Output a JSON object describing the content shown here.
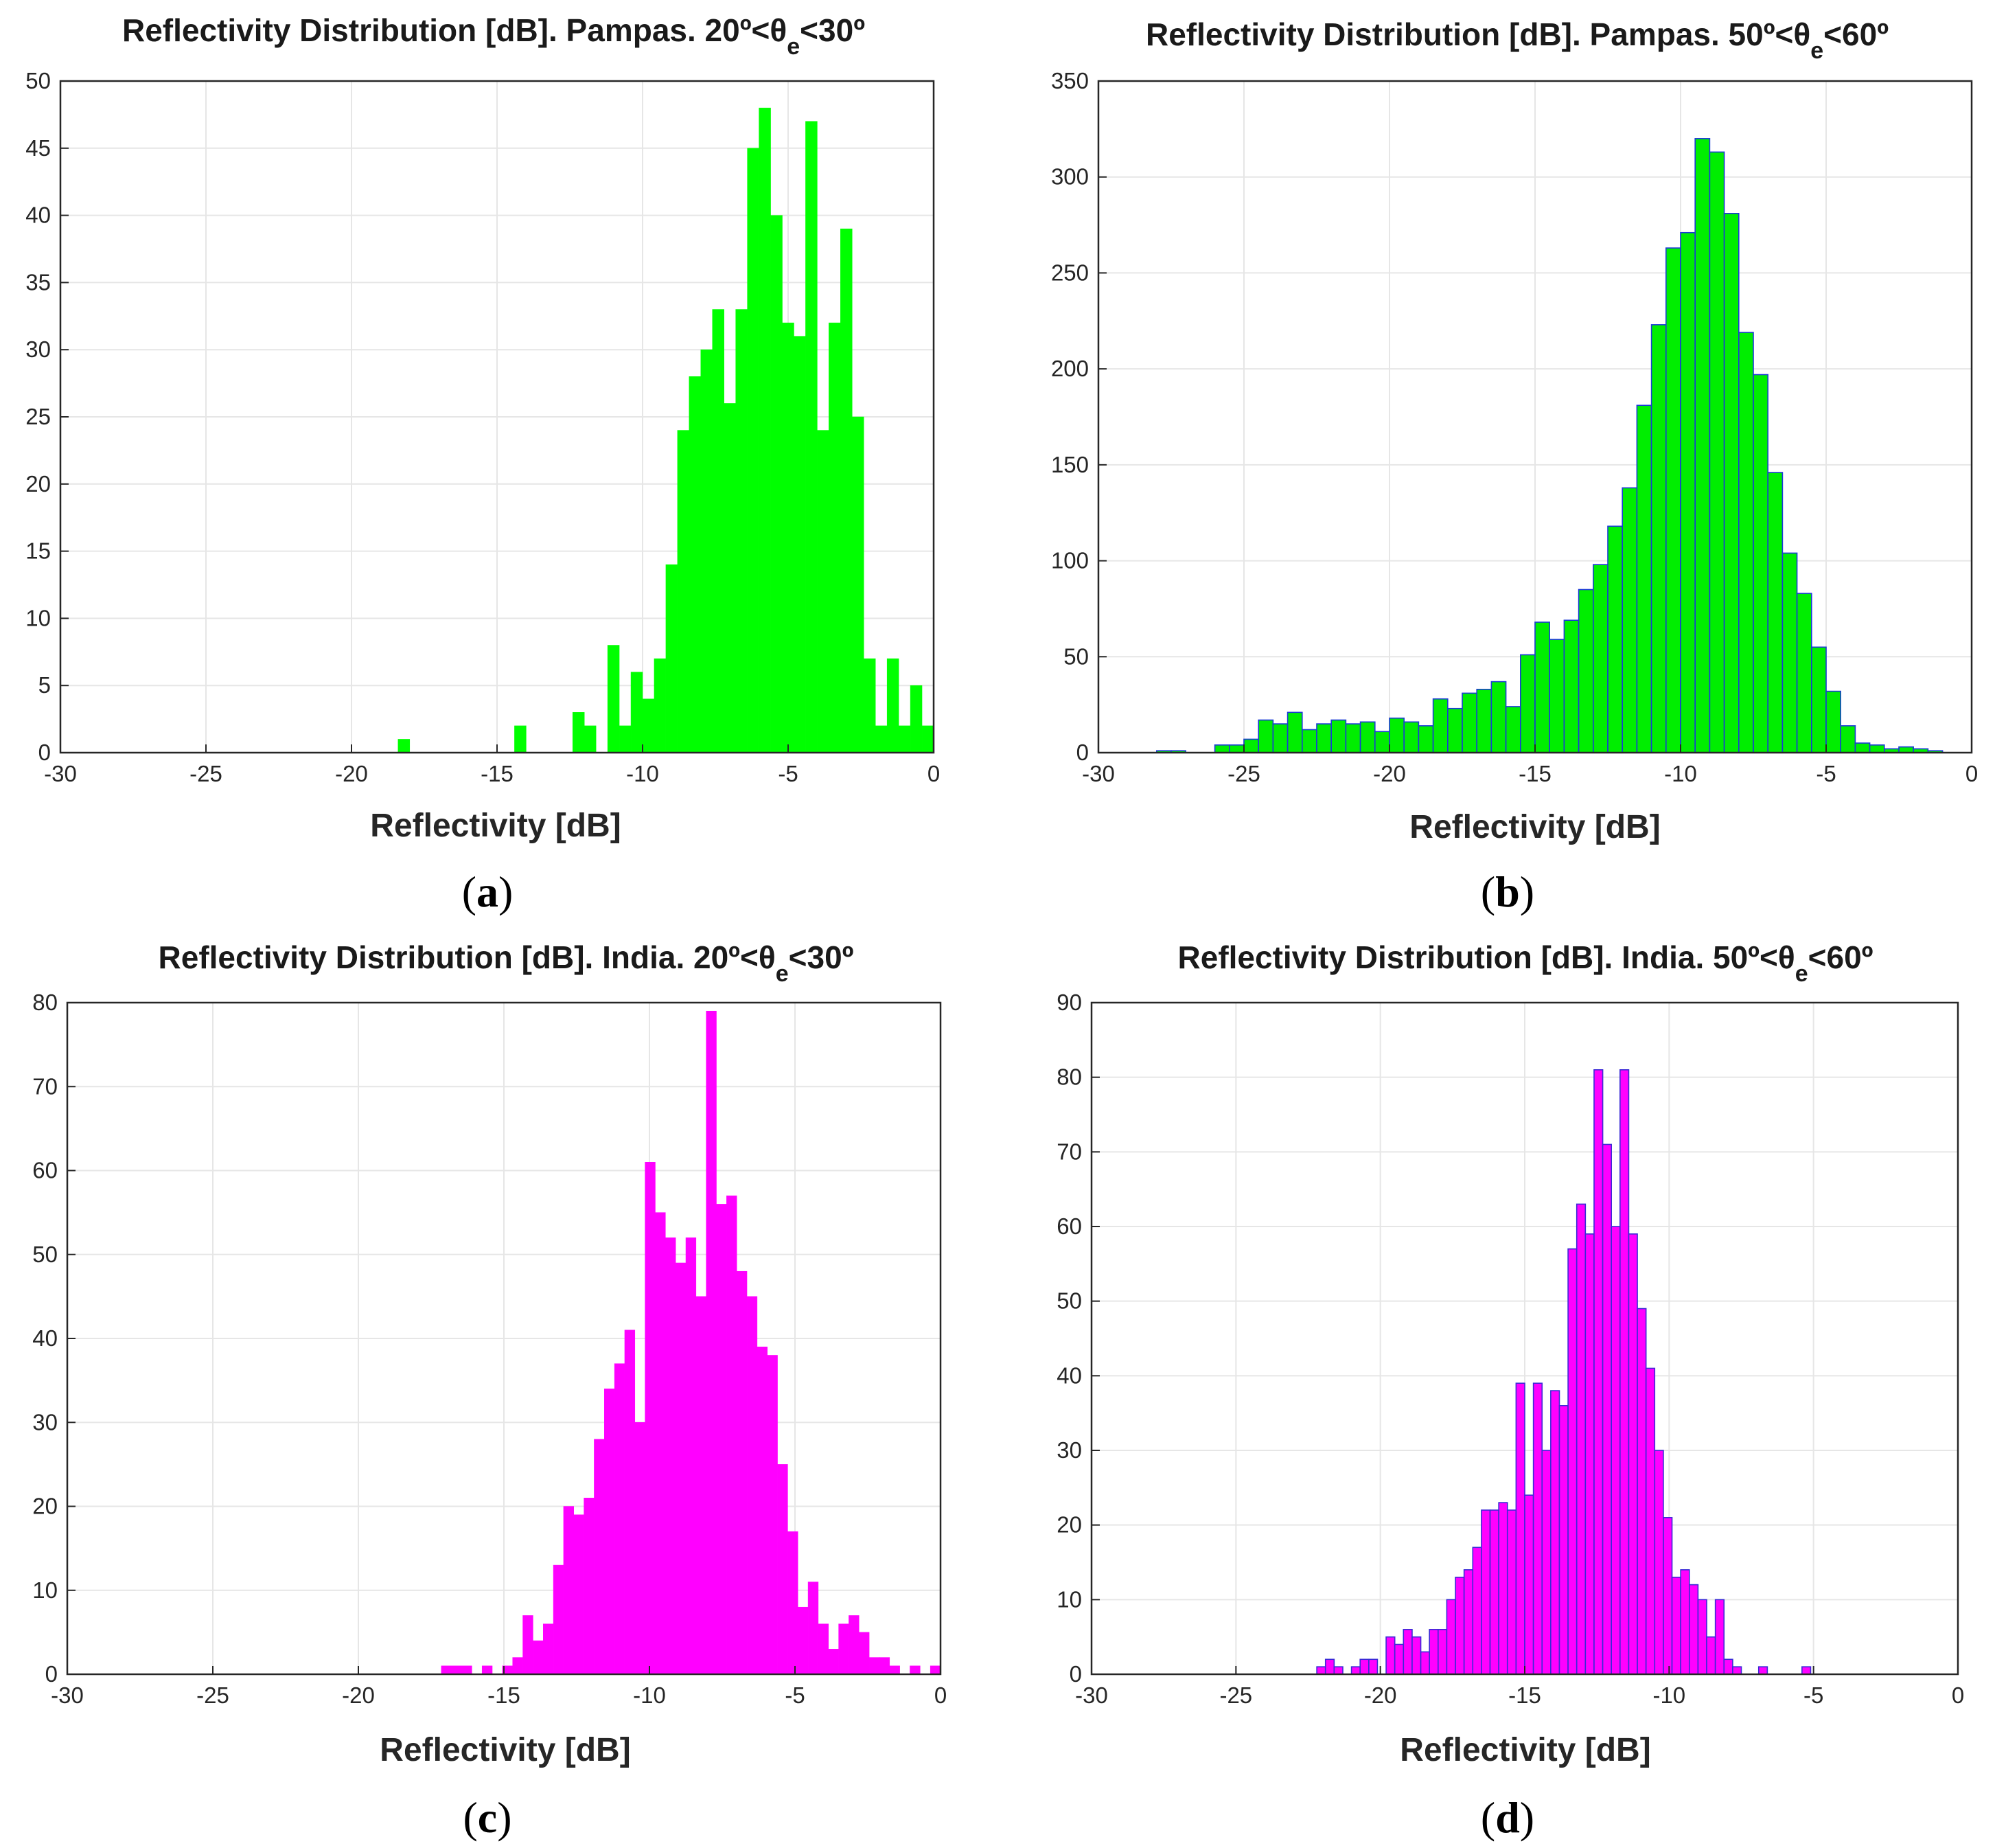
{
  "chart_data": [
    {
      "type": "bar",
      "title_main": "Reflectivity Distribution [dB]. Pampas. 20º<θ",
      "title_sub": "e",
      "title_end": "<30º",
      "xlabel": "Reflectivity [dB]",
      "ylabel": "",
      "panel_label": "a",
      "xlim": [
        -30,
        0
      ],
      "ylim": [
        0,
        50
      ],
      "xticks": [
        -30,
        -25,
        -20,
        -15,
        -10,
        -5,
        0
      ],
      "yticks": [
        0,
        5,
        10,
        15,
        20,
        25,
        30,
        35,
        40,
        45,
        50
      ],
      "grid": true,
      "color": "#00ff00",
      "edge_color": "#00ff00",
      "bin_width": 0.4,
      "x": [
        -18.4,
        -18.0,
        -17.6,
        -17.2,
        -16.8,
        -16.4,
        -16.0,
        -15.6,
        -15.2,
        -14.8,
        -14.4,
        -14.0,
        -13.6,
        -13.2,
        -12.8,
        -12.4,
        -12.0,
        -11.6,
        -11.2,
        -10.8,
        -10.4,
        -10.0,
        -9.6,
        -9.2,
        -8.8,
        -8.4,
        -8.0,
        -7.6,
        -7.2,
        -6.8,
        -6.4,
        -6.0,
        -5.6,
        -5.2,
        -4.8,
        -4.4,
        -4.0,
        -3.6,
        -3.2,
        -2.8,
        -2.4,
        -2.0,
        -1.6,
        -1.2,
        -0.8,
        -0.4
      ],
      "values": [
        1,
        0,
        0,
        0,
        0,
        0,
        0,
        0,
        0,
        0,
        2,
        0,
        0,
        0,
        0,
        3,
        2,
        0,
        8,
        2,
        6,
        4,
        7,
        14,
        24,
        28,
        30,
        33,
        26,
        33,
        45,
        48,
        40,
        32,
        31,
        47,
        24,
        32,
        39,
        25,
        7,
        2,
        7,
        2,
        5,
        2
      ]
    },
    {
      "type": "bar",
      "title_main": "Reflectivity Distribution [dB]. Pampas. 50º<θ",
      "title_sub": "e",
      "title_end": "<60º",
      "xlabel": "Reflectivity [dB]",
      "ylabel": "",
      "panel_label": "b",
      "xlim": [
        -30,
        0
      ],
      "ylim": [
        0,
        350
      ],
      "xticks": [
        -30,
        -25,
        -20,
        -15,
        -10,
        -5,
        0
      ],
      "yticks": [
        0,
        50,
        100,
        150,
        200,
        250,
        300,
        350
      ],
      "grid": true,
      "color": "#00ee00",
      "edge_color": "#1a3ad6",
      "bin_width": 0.5,
      "x": [
        -28.0,
        -27.5,
        -27.0,
        -26.5,
        -26.0,
        -25.5,
        -25.0,
        -24.5,
        -24.0,
        -23.5,
        -23.0,
        -22.5,
        -22.0,
        -21.5,
        -21.0,
        -20.5,
        -20.0,
        -19.5,
        -19.0,
        -18.5,
        -18.0,
        -17.5,
        -17.0,
        -16.5,
        -16.0,
        -15.5,
        -15.0,
        -14.5,
        -14.0,
        -13.5,
        -13.0,
        -12.5,
        -12.0,
        -11.5,
        -11.0,
        -10.5,
        -10.0,
        -9.5,
        -9.0,
        -8.5,
        -8.0,
        -7.5,
        -7.0,
        -6.5,
        -6.0,
        -5.5,
        -5.0,
        -4.5,
        -4.0,
        -3.5,
        -3.0,
        -2.5,
        -2.0,
        -1.5
      ],
      "values": [
        1,
        1,
        0,
        0,
        4,
        4,
        7,
        17,
        15,
        21,
        12,
        15,
        17,
        15,
        16,
        11,
        18,
        16,
        14,
        28,
        23,
        31,
        33,
        37,
        24,
        51,
        68,
        59,
        69,
        85,
        98,
        118,
        138,
        181,
        223,
        263,
        271,
        320,
        313,
        281,
        219,
        197,
        146,
        104,
        83,
        55,
        32,
        14,
        5,
        4,
        2,
        3,
        2,
        1
      ]
    },
    {
      "type": "bar",
      "title_main": "Reflectivity Distribution [dB]. India. 20º<θ",
      "title_sub": "e",
      "title_end": "<30º",
      "xlabel": "Reflectivity [dB]",
      "ylabel": "",
      "panel_label": "c",
      "xlim": [
        -30,
        0
      ],
      "ylim": [
        0,
        80
      ],
      "xticks": [
        -30,
        -25,
        -20,
        -15,
        -10,
        -5,
        0
      ],
      "yticks": [
        0,
        10,
        20,
        30,
        40,
        50,
        60,
        70,
        80
      ],
      "grid": true,
      "color": "#ff00ff",
      "edge_color": "#ff00ff",
      "bin_width": 0.35,
      "x": [
        -17.15,
        -16.8,
        -16.45,
        -16.1,
        -15.75,
        -15.4,
        -15.05,
        -14.7,
        -14.35,
        -14.0,
        -13.65,
        -13.3,
        -12.95,
        -12.6,
        -12.25,
        -11.9,
        -11.55,
        -11.2,
        -10.85,
        -10.5,
        -10.15,
        -9.8,
        -9.45,
        -9.1,
        -8.75,
        -8.4,
        -8.05,
        -7.7,
        -7.35,
        -7.0,
        -6.65,
        -6.3,
        -5.95,
        -5.6,
        -5.25,
        -4.9,
        -4.55,
        -4.2,
        -3.85,
        -3.5,
        -3.15,
        -2.8,
        -2.45,
        -2.1,
        -1.75,
        -1.4,
        -1.05,
        -0.7,
        -0.35
      ],
      "values": [
        1,
        1,
        1,
        0,
        1,
        0,
        1,
        2,
        7,
        4,
        6,
        13,
        20,
        19,
        21,
        28,
        34,
        37,
        41,
        30,
        61,
        55,
        52,
        49,
        52,
        45,
        79,
        56,
        57,
        48,
        45,
        39,
        38,
        25,
        17,
        8,
        11,
        6,
        3,
        6,
        7,
        5,
        2,
        2,
        1,
        0,
        1,
        0,
        1
      ]
    },
    {
      "type": "bar",
      "title_main": "Reflectivity Distribution [dB]. India. 50º<θ",
      "title_sub": "e",
      "title_end": "<60º",
      "xlabel": "Reflectivity [dB]",
      "ylabel": "",
      "panel_label": "d",
      "xlim": [
        -30,
        0
      ],
      "ylim": [
        0,
        90
      ],
      "xticks": [
        -30,
        -25,
        -20,
        -15,
        -10,
        -5,
        0
      ],
      "yticks": [
        0,
        10,
        20,
        30,
        40,
        50,
        60,
        70,
        80,
        90
      ],
      "grid": true,
      "color": "#ff00ff",
      "edge_color": "#3a2ad6",
      "bin_width": 0.3,
      "x": [
        -22.2,
        -21.9,
        -21.6,
        -21.3,
        -21.0,
        -20.7,
        -20.4,
        -20.1,
        -19.8,
        -19.5,
        -19.2,
        -18.9,
        -18.6,
        -18.3,
        -18.0,
        -17.7,
        -17.4,
        -17.1,
        -16.8,
        -16.5,
        -16.2,
        -15.9,
        -15.6,
        -15.3,
        -15.0,
        -14.7,
        -14.4,
        -14.1,
        -13.8,
        -13.5,
        -13.2,
        -12.9,
        -12.6,
        -12.3,
        -12.0,
        -11.7,
        -11.4,
        -11.1,
        -10.8,
        -10.5,
        -10.2,
        -9.9,
        -9.6,
        -9.3,
        -9.0,
        -8.7,
        -8.4,
        -8.1,
        -7.8,
        -7.5,
        -7.2,
        -6.9,
        -6.6,
        -6.3,
        -6.0,
        -5.7,
        -5.4
      ],
      "values": [
        1,
        2,
        1,
        0,
        1,
        2,
        2,
        0,
        5,
        4,
        6,
        5,
        3,
        6,
        6,
        10,
        13,
        14,
        17,
        22,
        22,
        23,
        22,
        39,
        24,
        39,
        30,
        38,
        36,
        57,
        63,
        59,
        81,
        71,
        60,
        81,
        59,
        49,
        41,
        30,
        21,
        13,
        14,
        12,
        10,
        5,
        10,
        2,
        1,
        0,
        0,
        1,
        0,
        0,
        0,
        0,
        1
      ]
    }
  ]
}
